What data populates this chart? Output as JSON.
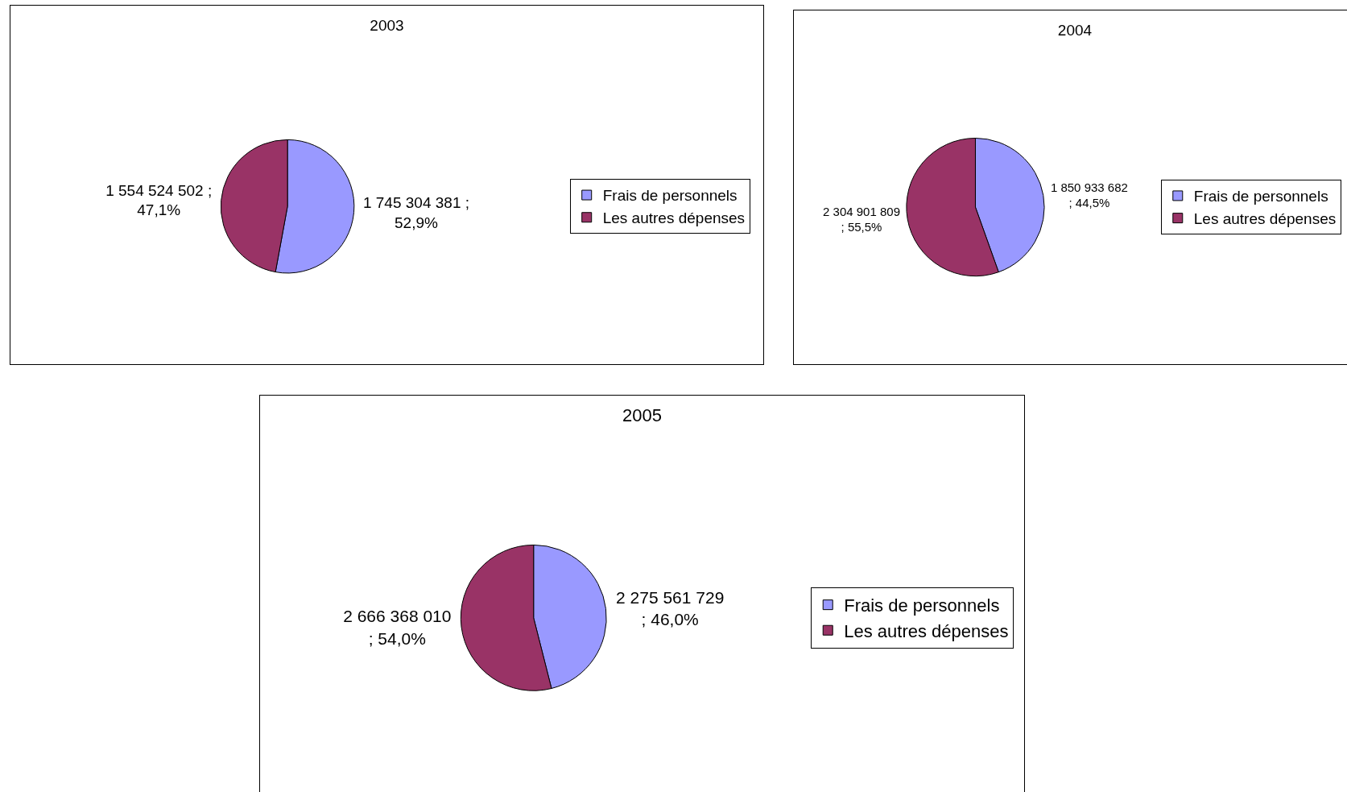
{
  "chart_data": [
    {
      "type": "pie",
      "title": "2003",
      "categories": [
        "Frais de personnels",
        "Les autres dépenses"
      ],
      "values": [
        1745304381,
        1554524502
      ],
      "colors": [
        "#9999ff",
        "#993366"
      ],
      "value_labels": [
        "1 745 304 381 ;\n52,9%",
        "1 554 524 502 ;\n47,1%"
      ],
      "legend": "right"
    },
    {
      "type": "pie",
      "title": "2004",
      "categories": [
        "Frais de personnels",
        "Les autres dépenses"
      ],
      "values": [
        1850933682,
        2304901809
      ],
      "colors": [
        "#9999ff",
        "#993366"
      ],
      "value_labels": [
        "1 850 933 682\n; 44,5%",
        "2 304 901 809\n; 55,5%"
      ],
      "legend": "right"
    },
    {
      "type": "pie",
      "title": "2005",
      "categories": [
        "Frais de personnels",
        "Les autres dépenses"
      ],
      "values": [
        2275561729,
        2666368010
      ],
      "colors": [
        "#9999ff",
        "#993366"
      ],
      "value_labels": [
        "2 275 561 729\n; 46,0%",
        "2 666 368 010\n; 54,0%"
      ],
      "legend": "right"
    }
  ]
}
